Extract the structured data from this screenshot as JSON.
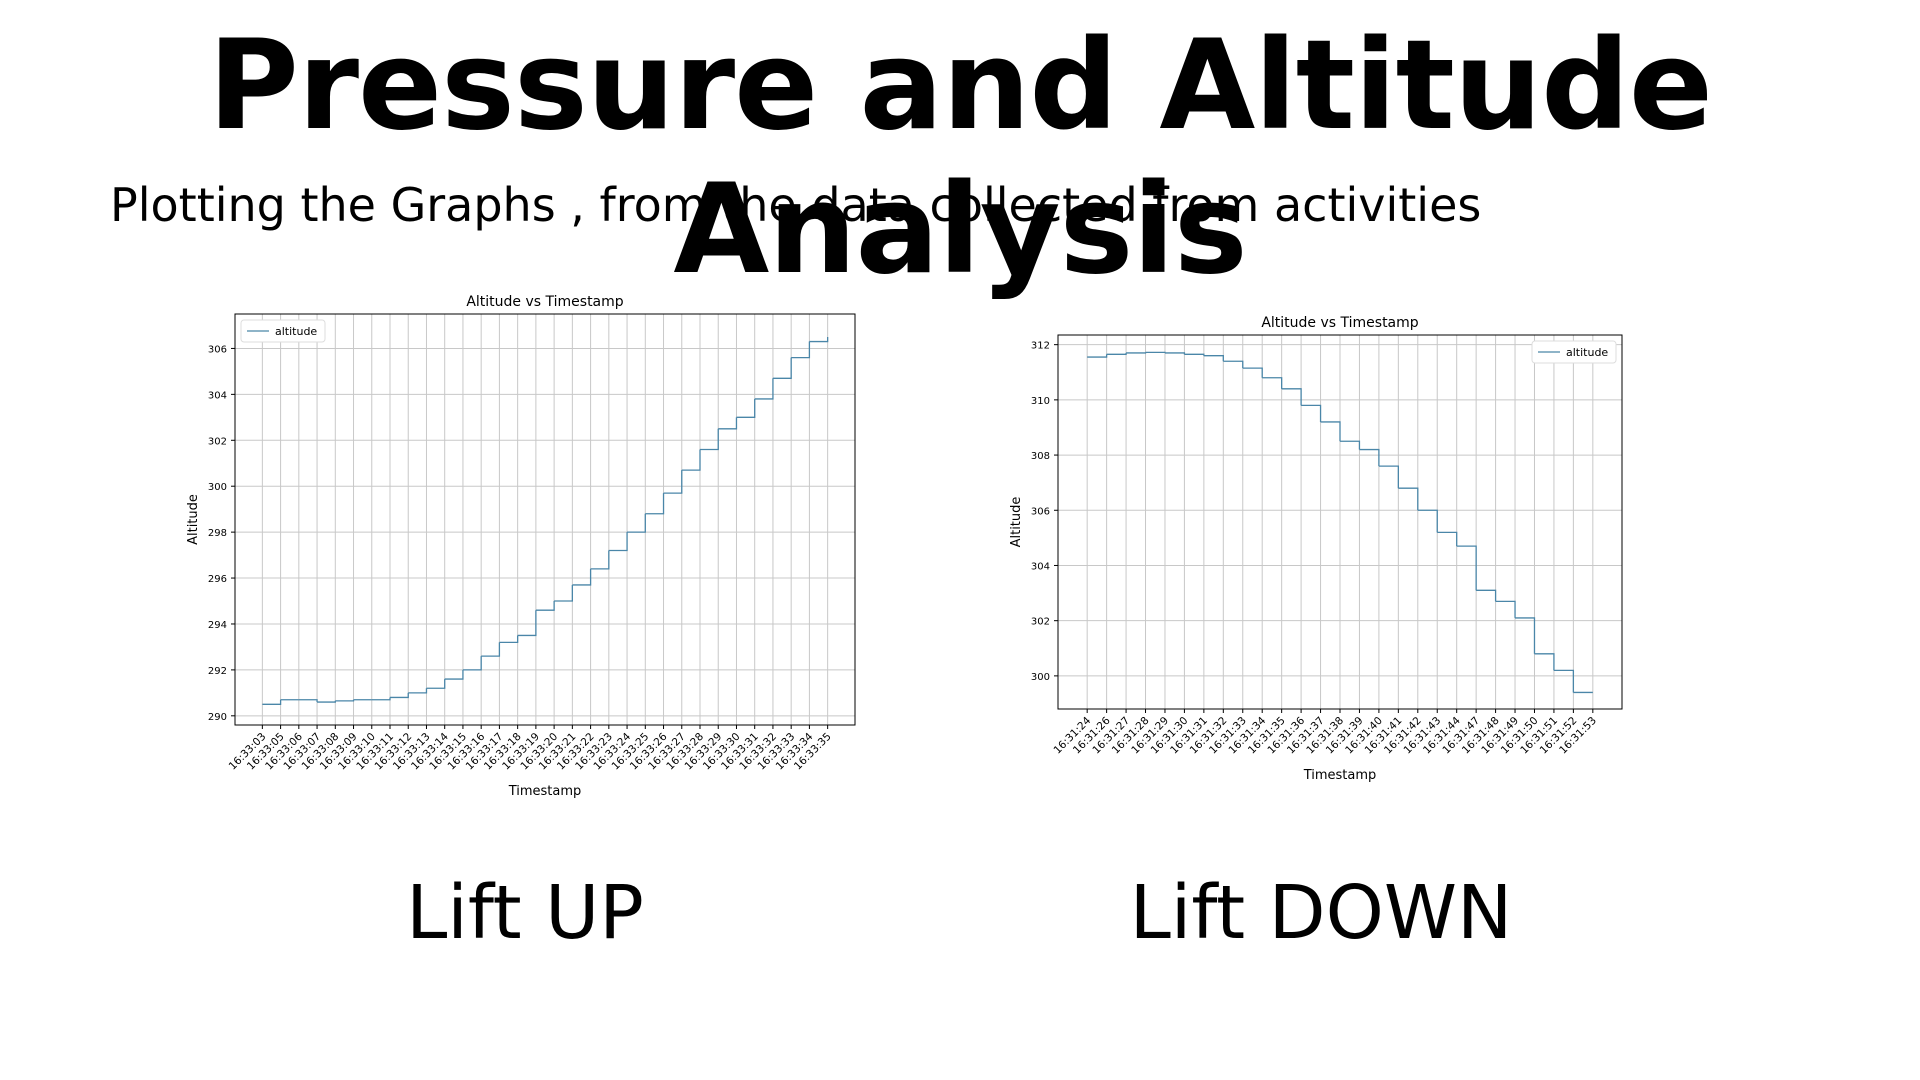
{
  "title": "Pressure and Altitude Analysis",
  "subtitle": "Plotting the Graphs , from the data collected from activities",
  "chart_data": [
    {
      "type": "line",
      "drawstyle": "steps-post",
      "title": "Altitude vs Timestamp",
      "x_label": "Timestamp",
      "y_label": "Altitude",
      "caption": "Lift UP",
      "legend": "upper left",
      "grid": true,
      "categories": [
        "16:33:03",
        "16:33:05",
        "16:33:06",
        "16:33:07",
        "16:33:08",
        "16:33:09",
        "16:33:10",
        "16:33:11",
        "16:33:12",
        "16:33:13",
        "16:33:14",
        "16:33:15",
        "16:33:16",
        "16:33:17",
        "16:33:18",
        "16:33:19",
        "16:33:20",
        "16:33:21",
        "16:33:22",
        "16:33:23",
        "16:33:24",
        "16:33:25",
        "16:33:26",
        "16:33:27",
        "16:33:28",
        "16:33:29",
        "16:33:30",
        "16:33:31",
        "16:33:32",
        "16:33:33",
        "16:33:34",
        "16:33:35"
      ],
      "series": [
        {
          "name": "altitude",
          "color": "#4a86a8",
          "values": [
            290.5,
            290.7,
            290.7,
            290.6,
            290.65,
            290.7,
            290.7,
            290.8,
            291.0,
            291.2,
            291.6,
            292.0,
            292.6,
            293.2,
            293.5,
            294.6,
            295.0,
            295.7,
            296.4,
            297.2,
            298.0,
            298.8,
            299.7,
            300.7,
            301.6,
            302.5,
            303.0,
            303.8,
            304.7,
            305.6,
            306.3,
            306.5
          ]
        }
      ],
      "ylim": [
        289.6,
        307.5
      ],
      "yticks": [
        290,
        292,
        294,
        296,
        298,
        300,
        302,
        304,
        306
      ]
    },
    {
      "type": "line",
      "drawstyle": "steps-post",
      "title": "Altitude vs Timestamp",
      "x_label": "Timestamp",
      "y_label": "Altitude",
      "caption": "Lift DOWN",
      "legend": "upper right",
      "grid": true,
      "categories": [
        "16:31:24",
        "16:31:26",
        "16:31:27",
        "16:31:28",
        "16:31:29",
        "16:31:30",
        "16:31:31",
        "16:31:32",
        "16:31:33",
        "16:31:34",
        "16:31:35",
        "16:31:36",
        "16:31:37",
        "16:31:38",
        "16:31:39",
        "16:31:40",
        "16:31:41",
        "16:31:42",
        "16:31:43",
        "16:31:44",
        "16:31:47",
        "16:31:48",
        "16:31:49",
        "16:31:50",
        "16:31:51",
        "16:31:52",
        "16:31:53"
      ],
      "series": [
        {
          "name": "altitude",
          "color": "#4a86a8",
          "values": [
            311.55,
            311.65,
            311.7,
            311.72,
            311.7,
            311.65,
            311.6,
            311.4,
            311.15,
            310.8,
            310.4,
            309.8,
            309.2,
            308.5,
            308.2,
            307.6,
            306.8,
            306.0,
            305.2,
            304.7,
            303.1,
            302.7,
            302.1,
            300.8,
            300.2,
            299.4,
            299.4
          ]
        }
      ],
      "ylim": [
        298.8,
        312.35
      ],
      "yticks": [
        300,
        302,
        304,
        306,
        308,
        310,
        312
      ]
    }
  ]
}
